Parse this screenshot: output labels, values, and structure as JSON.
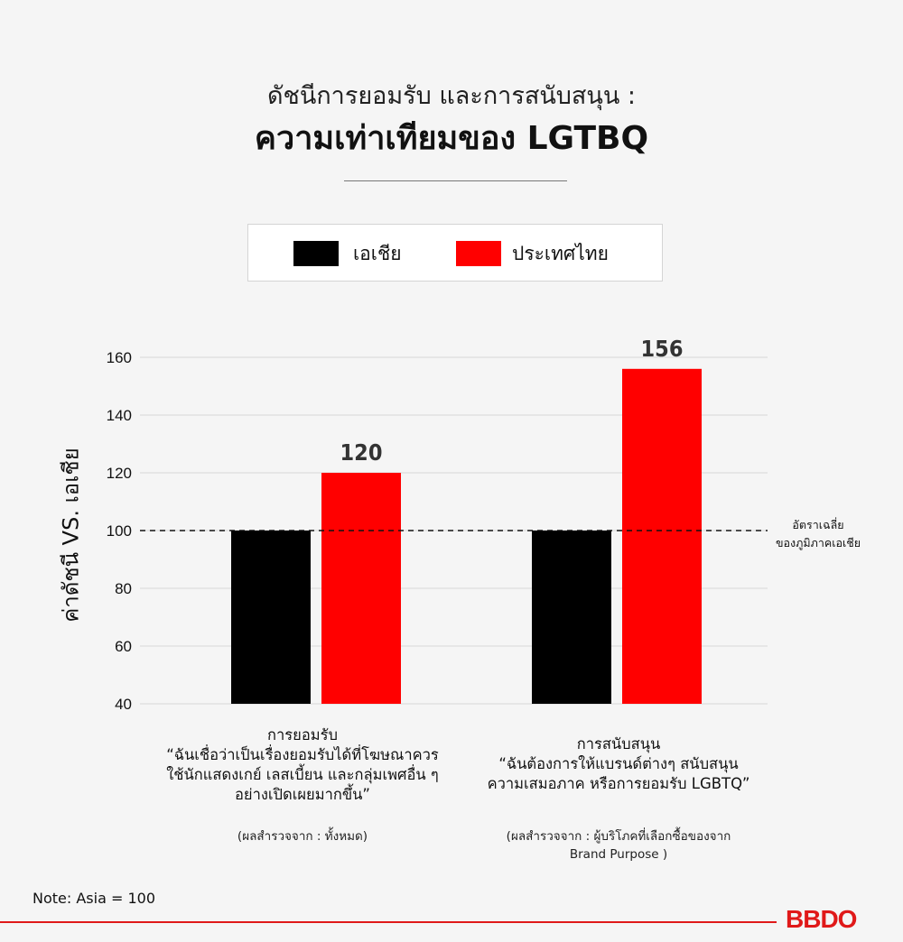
{
  "header": {
    "title_line1": "ดัชนีการยอมรับ และการสนับสนุน :",
    "title_line2": "ความเท่าเทียมของ LGTBQ"
  },
  "legend": {
    "items": [
      {
        "label": "เอเชีย",
        "color": "#000000"
      },
      {
        "label": "ประเทศไทย",
        "color": "#ff0000"
      }
    ]
  },
  "chart_data": {
    "type": "bar",
    "ylabel": "ค่าดัชนี VS. เอเชีย",
    "ylim": [
      40,
      160
    ],
    "yticks": [
      40,
      60,
      80,
      100,
      120,
      140,
      160
    ],
    "grid": true,
    "categories": [
      "การยอมรับ",
      "การสนับสนุน"
    ],
    "series": [
      {
        "name": "เอเชีย",
        "color": "#000000",
        "values": [
          100,
          100
        ]
      },
      {
        "name": "ประเทศไทย",
        "color": "#ff0000",
        "values": [
          120,
          156
        ]
      }
    ],
    "data_labels": [
      "",
      "",
      "120",
      "156"
    ],
    "reference_line": {
      "value": 100,
      "style": "dashed",
      "label_line1": "อัตราเฉลี่ย",
      "label_line2": "ของภูมิภาคเอเชีย"
    }
  },
  "categories_text": [
    {
      "name": "การยอมรับ",
      "quote_lines": [
        "“ฉันเชื่อว่าเป็นเรื่องยอมรับได้ที่โฆษณาควร",
        "ใช้นักแสดงเกย์ เลสเบี้ยน และกลุ่มเพศอื่น ๆ",
        "อย่างเปิดเผยมากขึ้น”"
      ],
      "source_lines": [
        "(ผลสำรวจจาก : ทั้งหมด)"
      ]
    },
    {
      "name": "การสนับสนุน",
      "quote_lines": [
        "“ฉันต้องการให้แบรนด์ต่างๆ สนับสนุน",
        "ความเสมอภาค หรือการยอมรับ LGBTQ”"
      ],
      "source_lines": [
        "(ผลสำรวจจาก : ผู้บริโภคที่เลือกซื้อของจาก",
        "Brand Purpose )"
      ]
    }
  ],
  "footer": {
    "note": "Note: Asia = 100",
    "logo": "BBDO"
  }
}
